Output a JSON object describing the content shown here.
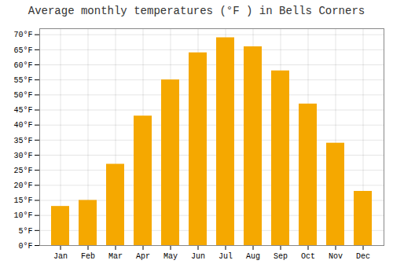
{
  "chart_data": {
    "type": "bar",
    "title": "Average monthly temperatures (°F ) in Bells Corners",
    "categories": [
      "Jan",
      "Feb",
      "Mar",
      "Apr",
      "May",
      "Jun",
      "Jul",
      "Aug",
      "Sep",
      "Oct",
      "Nov",
      "Dec"
    ],
    "values": [
      13,
      15,
      27,
      43,
      55,
      64,
      69,
      66,
      58,
      47,
      34,
      18
    ],
    "color": "#F5A800",
    "ylim": [
      0,
      72
    ],
    "yticks": [
      {
        "value": 0,
        "label": "0°F"
      },
      {
        "value": 5,
        "label": "5°F"
      },
      {
        "value": 10,
        "label": "10°F"
      },
      {
        "value": 15,
        "label": "15°F"
      },
      {
        "value": 20,
        "label": "20°F"
      },
      {
        "value": 25,
        "label": "25°F"
      },
      {
        "value": 30,
        "label": "30°F"
      },
      {
        "value": 35,
        "label": "35°F"
      },
      {
        "value": 40,
        "label": "40°F"
      },
      {
        "value": 45,
        "label": "45°F"
      },
      {
        "value": 50,
        "label": "50°F"
      },
      {
        "value": 55,
        "label": "55°F"
      },
      {
        "value": 60,
        "label": "60°F"
      },
      {
        "value": 65,
        "label": "65°F"
      },
      {
        "value": 70,
        "label": "70°F"
      }
    ],
    "grid": true
  }
}
